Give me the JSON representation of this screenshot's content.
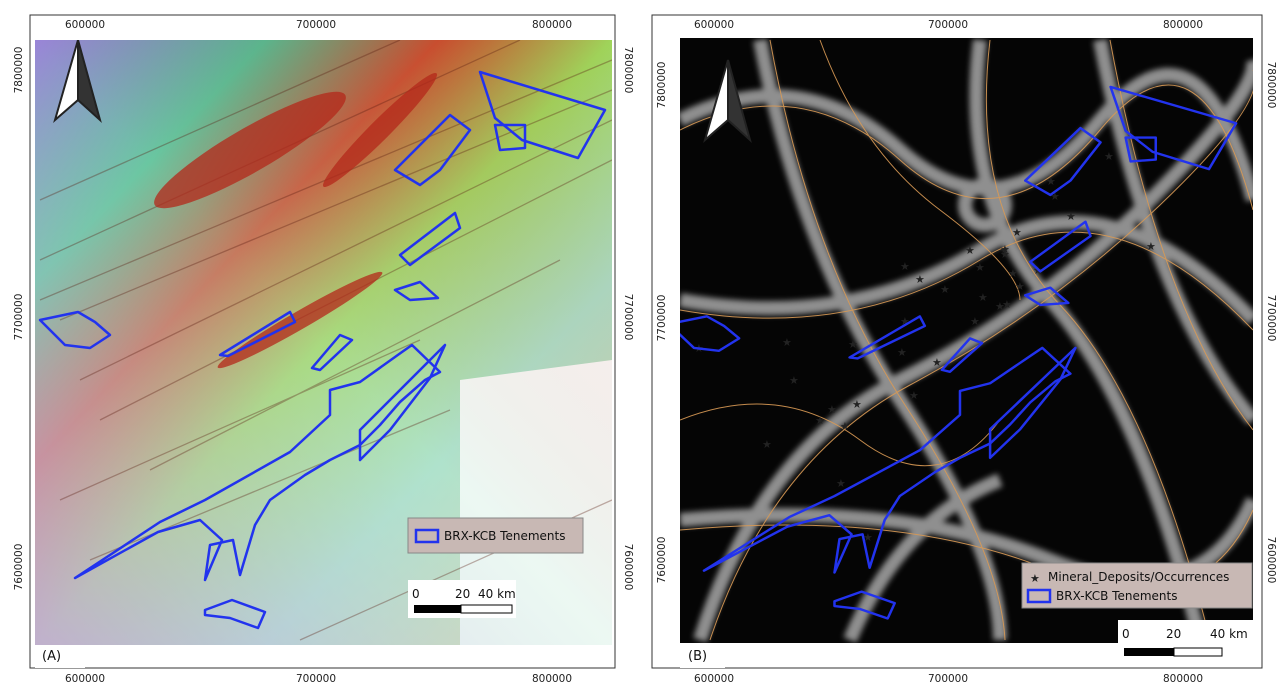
{
  "panels": [
    {
      "label": "(A)",
      "x_ticks": [
        "600000",
        "700000",
        "800000"
      ],
      "y_ticks": [
        "7800000",
        "7700000",
        "7600000"
      ],
      "legend": [
        "BRX-KCB Tenements"
      ],
      "scale": [
        "0",
        "20",
        "40 km"
      ]
    },
    {
      "label": "(B)",
      "x_ticks": [
        "600000",
        "700000",
        "800000"
      ],
      "y_ticks": [
        "7800000",
        "7700000",
        "7600000"
      ],
      "legend": [
        "Mineral_Deposits/Occurrences",
        "BRX-KCB Tenements"
      ],
      "scale": [
        "0",
        "20",
        "40 km"
      ]
    }
  ]
}
